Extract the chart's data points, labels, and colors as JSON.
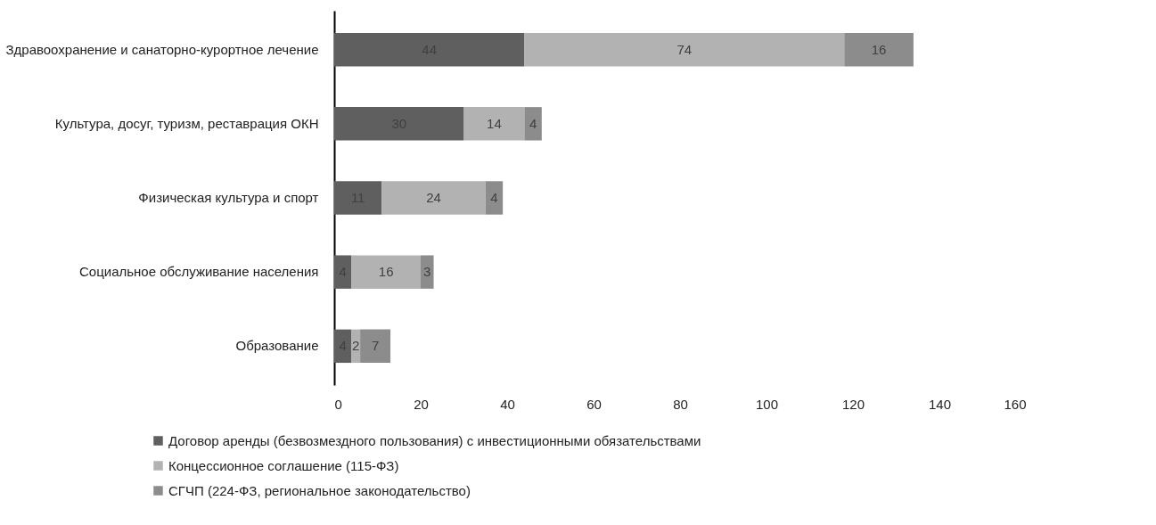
{
  "chart_data": {
    "type": "bar",
    "orientation": "horizontal",
    "stacked": true,
    "data_labels": true,
    "legend": "bottom",
    "categories": [
      "Здравоохранение и санаторно-курортное лечение",
      "Культура, досуг, туризм, реставрация ОКН",
      "Физическая культура и спорт",
      "Социальное обслуживание населения",
      "Образование"
    ],
    "series": [
      {
        "name": "Договор аренды (безвозмездного пользования) с инвестиционными обязательствами",
        "color": "#5f5f5f",
        "values": [
          44,
          30,
          11,
          4,
          4
        ]
      },
      {
        "name": "Концессионное соглашение (115-ФЗ)",
        "color": "#b2b2b2",
        "values": [
          74,
          14,
          24,
          16,
          2
        ]
      },
      {
        "name": "СГЧП (224-ФЗ, региональное законодательство)",
        "color": "#8c8c8c",
        "values": [
          16,
          4,
          4,
          3,
          7
        ]
      }
    ],
    "xlim": [
      0,
      160
    ],
    "xticks": [
      0,
      20,
      40,
      60,
      80,
      100,
      120,
      140,
      160
    ]
  }
}
